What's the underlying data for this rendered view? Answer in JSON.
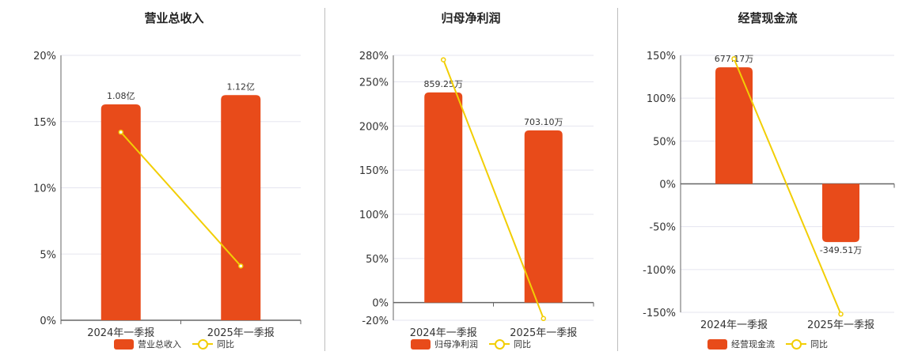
{
  "colors": {
    "bar": "#E84B1A",
    "line": "#F2CE05",
    "grid": "#e5e5ef",
    "axis": "#666666"
  },
  "chart_data": [
    {
      "type": "bar",
      "title": "营业总收入",
      "categories": [
        "2024年一季报",
        "2025年一季报"
      ],
      "bar_labels": [
        "1.08亿",
        "1.12亿"
      ],
      "y_ticks": [
        "20%",
        "15%",
        "10%",
        "5%",
        "0%"
      ],
      "ylim": [
        0,
        20
      ],
      "series": [
        {
          "name": "营业总收入",
          "type": "bar",
          "values": [
            16.3,
            17.0
          ],
          "display": [
            "1.08亿",
            "1.12亿"
          ]
        },
        {
          "name": "同比",
          "type": "line",
          "values": [
            14.2,
            4.1
          ]
        }
      ],
      "legend": [
        "营业总收入",
        "同比"
      ],
      "legend_position": "bottom"
    },
    {
      "type": "bar",
      "title": "归母净利润",
      "categories": [
        "2024年一季报",
        "2025年一季报"
      ],
      "bar_labels": [
        "859.25万",
        "703.10万"
      ],
      "y_ticks": [
        "280%",
        "250%",
        "200%",
        "150%",
        "100%",
        "50%",
        "0%",
        "-20%"
      ],
      "ylim": [
        -20,
        280
      ],
      "series": [
        {
          "name": "归母净利润",
          "type": "bar",
          "values": [
            238,
            195
          ],
          "display": [
            "859.25万",
            "703.10万"
          ]
        },
        {
          "name": "同比",
          "type": "line",
          "values": [
            275,
            -18
          ]
        }
      ],
      "legend": [
        "归母净利润",
        "同比"
      ],
      "legend_position": "bottom"
    },
    {
      "type": "bar",
      "title": "经营现金流",
      "categories": [
        "2024年一季报",
        "2025年一季报"
      ],
      "bar_labels": [
        "677.17万",
        "-349.51万"
      ],
      "y_ticks": [
        "150%",
        "100%",
        "50%",
        "0%",
        "-50%",
        "-100%",
        "-150%"
      ],
      "ylim": [
        -150,
        150
      ],
      "series": [
        {
          "name": "经营现金流",
          "type": "bar",
          "values": [
            136,
            -68
          ],
          "display": [
            "677.17万",
            "-349.51万"
          ]
        },
        {
          "name": "同比",
          "type": "line",
          "values": [
            146,
            -152
          ]
        }
      ],
      "legend": [
        "经营现金流",
        "同比"
      ],
      "legend_position": "bottom"
    }
  ]
}
